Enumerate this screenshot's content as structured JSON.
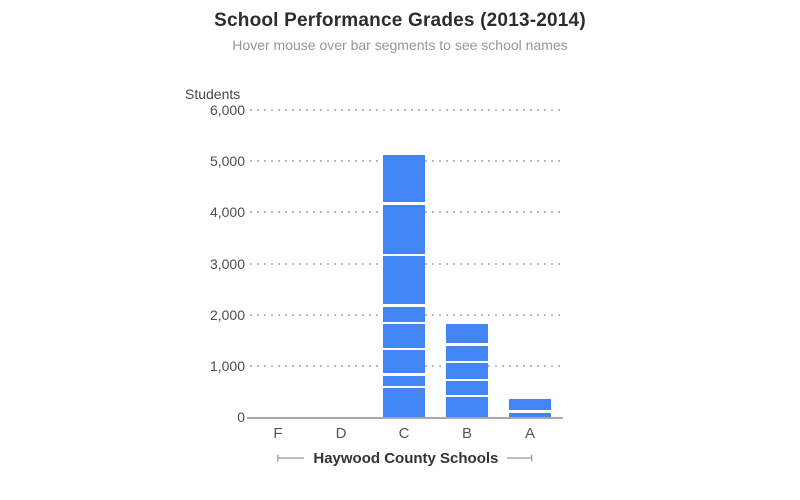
{
  "chart_data": {
    "type": "bar",
    "stacked": true,
    "title": "School Performance Grades (2013-2014)",
    "subtitle": "Hover mouse over bar segments to see school names",
    "ylabel": "Students",
    "xlabel": "Haywood County Schools",
    "ylim": [
      0,
      6000
    ],
    "ytick_interval": 1000,
    "grid": "horizontal-dotted",
    "legend": "none",
    "bar_color": "#4285f4",
    "segment_gap_color": "#ffffff",
    "axis_line_color": "#a6a9a9",
    "segments_order": "bottom-to-top",
    "yticks": [
      {
        "value": 0,
        "label": "0"
      },
      {
        "value": 1000,
        "label": "1,000"
      },
      {
        "value": 2000,
        "label": "2,000"
      },
      {
        "value": 3000,
        "label": "3,000"
      },
      {
        "value": 4000,
        "label": "4,000"
      },
      {
        "value": 5000,
        "label": "5,000"
      },
      {
        "value": 6000,
        "label": "6,000"
      }
    ],
    "categories": [
      {
        "label": "F",
        "segments": [],
        "total": 0
      },
      {
        "label": "D",
        "segments": [],
        "total": 0
      },
      {
        "label": "C",
        "segments": [
          610,
          245,
          500,
          505,
          340,
          990,
          1010,
          920
        ],
        "total": 5120
      },
      {
        "label": "B",
        "segments": [
          435,
          310,
          350,
          350,
          375
        ],
        "total": 1820
      },
      {
        "label": "A",
        "segments": [
          135,
          220
        ],
        "total": 355
      }
    ]
  }
}
